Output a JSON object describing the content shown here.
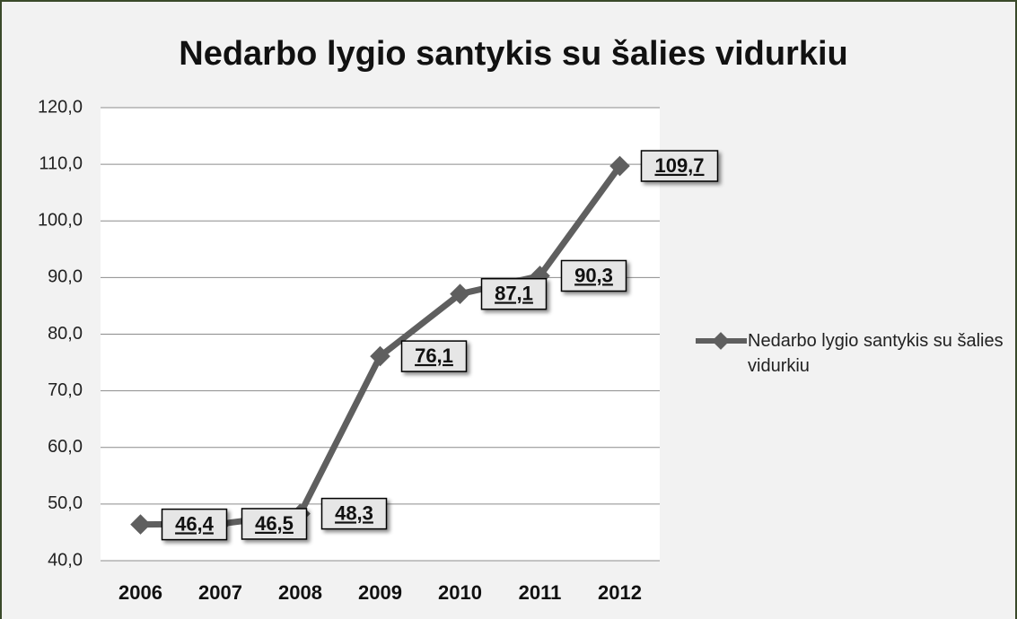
{
  "chart_data": {
    "type": "line",
    "title": "Nedarbo lygio santykis su šalies vidurkiu",
    "categories": [
      "2006",
      "2007",
      "2008",
      "2009",
      "2010",
      "2011",
      "2012"
    ],
    "series": [
      {
        "name": "Nedarbo lygio santykis su šalies vidurkiu",
        "color": "#5f5f5f",
        "values": [
          46.4,
          46.5,
          48.3,
          76.1,
          87.1,
          90.3,
          109.7
        ],
        "value_labels": [
          "46,4",
          "46,5",
          "48,3",
          "76,1",
          "87,1",
          "90,3",
          "109,7"
        ]
      }
    ],
    "ylim": [
      40,
      120
    ],
    "yticks": [
      {
        "value": 40,
        "label": "40,0"
      },
      {
        "value": 50,
        "label": "50,0"
      },
      {
        "value": 60,
        "label": "60,0"
      },
      {
        "value": 70,
        "label": "70,0"
      },
      {
        "value": 80,
        "label": "80,0"
      },
      {
        "value": 90,
        "label": "90,0"
      },
      {
        "value": 100,
        "label": "100,0"
      },
      {
        "value": 110,
        "label": "110,0"
      },
      {
        "value": 120,
        "label": "120,0"
      }
    ],
    "grid": true,
    "legend": "right"
  }
}
